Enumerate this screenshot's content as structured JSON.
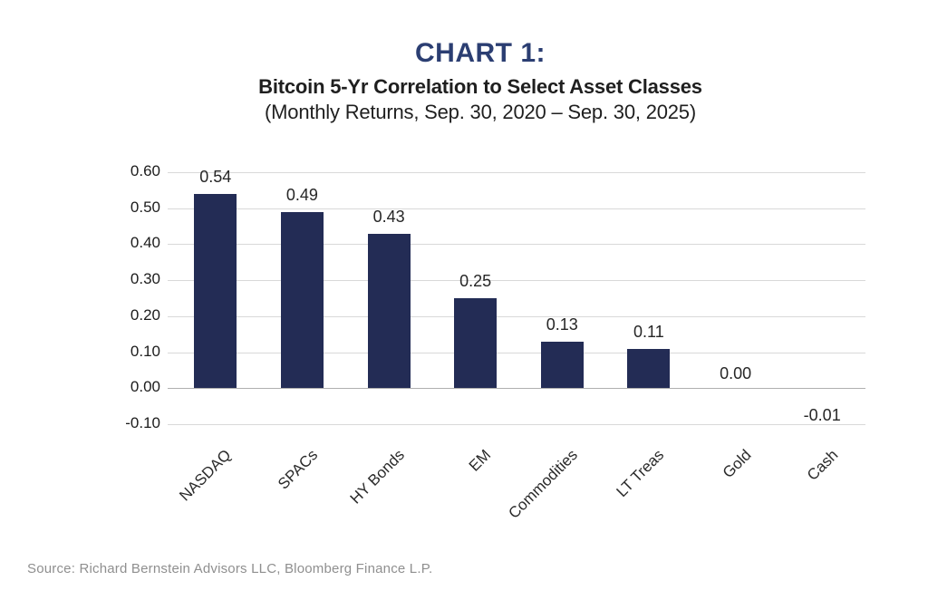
{
  "title": {
    "kicker": "CHART 1:",
    "main": "Bitcoin 5-Yr Correlation to Select Asset Classes",
    "sub": "(Monthly Returns, Sep. 30, 2020 – Sep. 30, 2025)"
  },
  "source": "Source: Richard Bernstein Advisors LLC, Bloomberg Finance L.P.",
  "colors": {
    "bar": "#232c55",
    "kicker": "#2b3e72",
    "grid": "#d9d9d9",
    "zero_line": "#b0b0b0",
    "text": "#1f1f1f",
    "value_label": "#262626",
    "source_text": "#8f8f8f"
  },
  "chart_data": {
    "type": "bar",
    "title": "CHART 1: Bitcoin 5-Yr Correlation to Select Asset Classes",
    "subtitle": "(Monthly Returns, Sep. 30, 2020 – Sep. 30, 2025)",
    "categories": [
      "NASDAQ",
      "SPACs",
      "HY Bonds",
      "EM",
      "Commodities",
      "LT Treas",
      "Gold",
      "Cash"
    ],
    "values": [
      0.54,
      0.49,
      0.43,
      0.25,
      0.13,
      0.11,
      0.0,
      -0.01
    ],
    "value_labels": [
      "0.54",
      "0.49",
      "0.43",
      "0.25",
      "0.13",
      "0.11",
      "0.00",
      "-0.01"
    ],
    "y_ticks": [
      "0.60",
      "0.50",
      "0.40",
      "0.30",
      "0.20",
      "0.10",
      "0.00",
      "-0.10"
    ],
    "y_tick_values": [
      0.6,
      0.5,
      0.4,
      0.3,
      0.2,
      0.1,
      0.0,
      -0.1
    ],
    "ylim": [
      -0.1,
      0.6
    ],
    "xlabel": "",
    "ylabel": "",
    "grid": true,
    "legend": false
  }
}
